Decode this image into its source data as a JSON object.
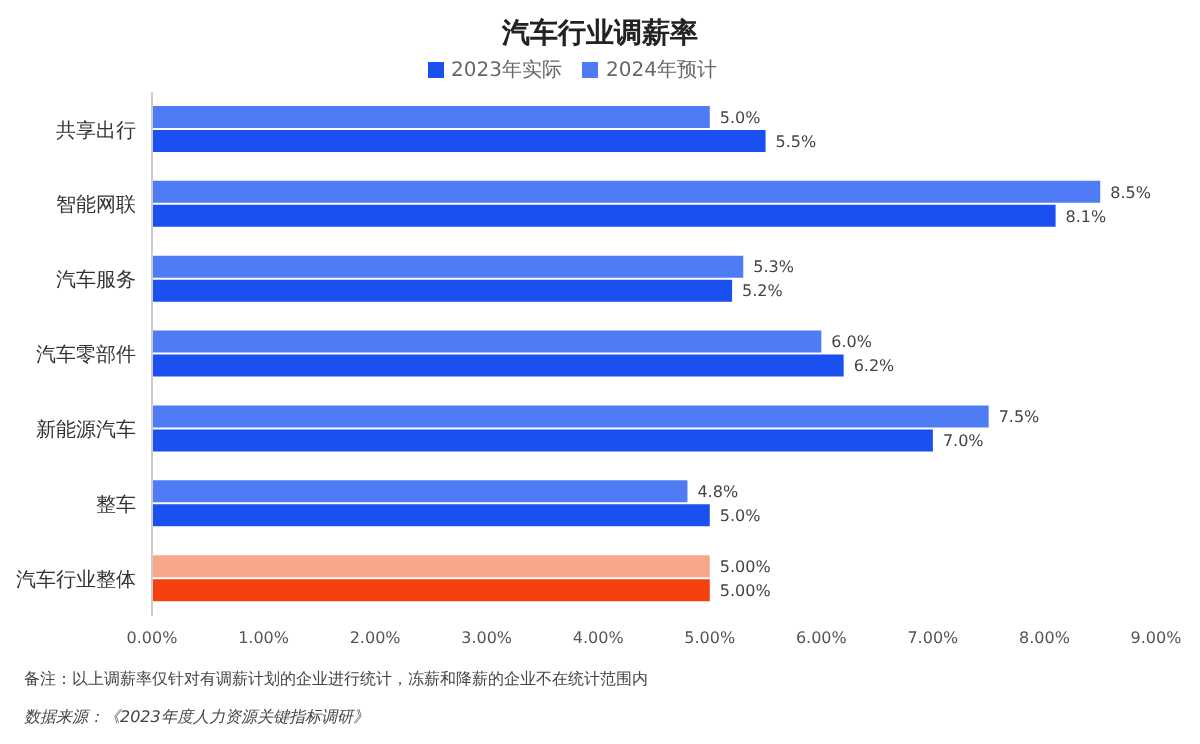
{
  "chart_data": {
    "type": "bar",
    "orientation": "horizontal",
    "title": "汽车行业调薪率",
    "categories": [
      "共享出行",
      "智能网联",
      "汽车服务",
      "汽车零部件",
      "新能源汽车",
      "整车",
      "汽车行业整体"
    ],
    "series": [
      {
        "name": "2024年预计",
        "color": "#4f7cf5",
        "colors": [
          "#4f7cf5",
          "#4f7cf5",
          "#4f7cf5",
          "#4f7cf5",
          "#4f7cf5",
          "#4f7cf5",
          "#f7a88a"
        ],
        "values": [
          5.0,
          8.5,
          5.3,
          6.0,
          7.5,
          4.8,
          5.0
        ],
        "value_labels": [
          "5.0%",
          "8.5%",
          "5.3%",
          "6.0%",
          "7.5%",
          "4.8%",
          "5.00%"
        ]
      },
      {
        "name": "2023年实际",
        "color": "#1a4ff0",
        "colors": [
          "#1a4ff0",
          "#1a4ff0",
          "#1a4ff0",
          "#1a4ff0",
          "#1a4ff0",
          "#1a4ff0",
          "#f5410f"
        ],
        "values": [
          5.5,
          8.1,
          5.2,
          6.2,
          7.0,
          5.0,
          5.0
        ],
        "value_labels": [
          "5.5%",
          "8.1%",
          "5.2%",
          "6.2%",
          "7.0%",
          "5.0%",
          "5.00%"
        ]
      }
    ],
    "xlim": [
      0,
      9
    ],
    "xticks": [
      {
        "value": 0,
        "label": "0.00%"
      },
      {
        "value": 1,
        "label": "1.00%"
      },
      {
        "value": 2,
        "label": "2.00%"
      },
      {
        "value": 3,
        "label": "3.00%"
      },
      {
        "value": 4,
        "label": "4.00%"
      },
      {
        "value": 5,
        "label": "5.00%"
      },
      {
        "value": 6,
        "label": "6.00%"
      },
      {
        "value": 7,
        "label": "7.00%"
      },
      {
        "value": 8,
        "label": "8.00%"
      },
      {
        "value": 9,
        "label": "9.00%"
      }
    ],
    "legend": "top",
    "grid": false,
    "annotations": [
      "备注：以上调薪率仅针对有调薪计划的企业进行统计，冻薪和降薪的企业不在统计范围内",
      "数据来源：《2023年度人力资源关键指标调研》"
    ]
  }
}
